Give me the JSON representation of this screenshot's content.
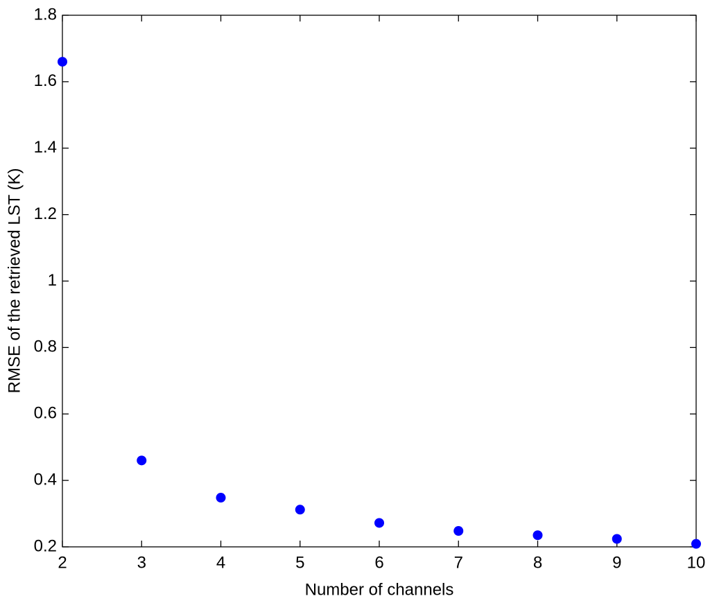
{
  "chart_data": {
    "type": "scatter",
    "xlabel": "Number of channels",
    "ylabel": "RMSE of the retrieved LST (K)",
    "x": [
      2,
      3,
      4,
      5,
      6,
      7,
      8,
      9,
      10
    ],
    "series": [
      {
        "color": "#0000ff",
        "values": [
          1.66,
          0.46,
          0.348,
          0.312,
          0.272,
          0.248,
          0.235,
          0.224,
          0.209
        ]
      }
    ],
    "xlim": [
      2,
      10
    ],
    "xticks": [
      2,
      3,
      4,
      5,
      6,
      7,
      8,
      9,
      10
    ],
    "ylim": [
      0.2,
      1.8
    ],
    "yticks": [
      0.2,
      0.4,
      0.6,
      0.8,
      1,
      1.2,
      1.4,
      1.6,
      1.8
    ],
    "grid": false
  }
}
